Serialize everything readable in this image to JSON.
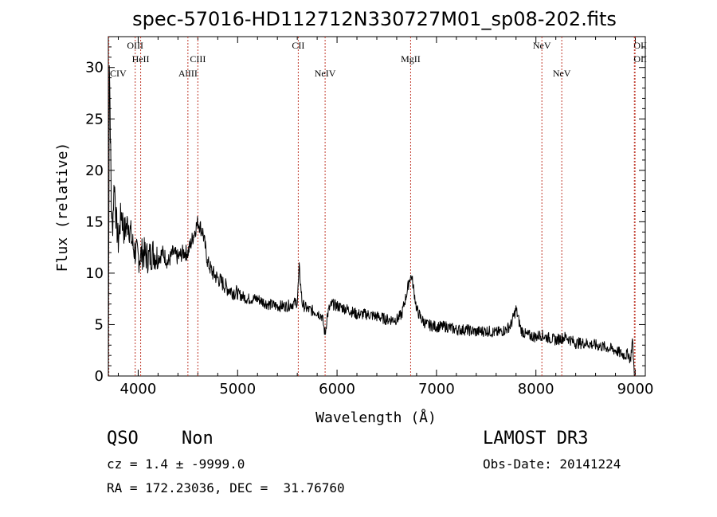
{
  "chart_data": {
    "type": "line",
    "title": "spec-57016-HD112712N330727M01_sp08-202.fits",
    "xlabel": "Wavelength (Å)",
    "ylabel": "Flux (relative)",
    "xlim": [
      3700,
      9100
    ],
    "ylim": [
      0,
      33
    ],
    "xticks": [
      4000,
      5000,
      6000,
      7000,
      8000,
      9000
    ],
    "yticks": [
      0,
      5,
      10,
      15,
      20,
      25,
      30
    ],
    "grid": false,
    "series": [
      {
        "x": [
          3700,
          3710,
          3720,
          3730,
          3740,
          3760,
          3780,
          3800,
          3830,
          3860,
          3900,
          3950,
          4000,
          4050,
          4100,
          4150,
          4200,
          4250,
          4300,
          4350,
          4400,
          4450,
          4500,
          4550,
          4600,
          4650,
          4700,
          4750,
          4800,
          4900,
          5000,
          5100,
          5200,
          5300,
          5400,
          5500,
          5600,
          5620,
          5650,
          5700,
          5800,
          5850,
          5880,
          5900,
          5920,
          5950,
          6000,
          6100,
          6200,
          6300,
          6400,
          6500,
          6600,
          6650,
          6700,
          6730,
          6750,
          6770,
          6800,
          6850,
          6900,
          7000,
          7100,
          7200,
          7300,
          7400,
          7500,
          7600,
          7700,
          7750,
          7800,
          7850,
          7900,
          8000,
          8050,
          8100,
          8200,
          8300,
          8400,
          8500,
          8600,
          8700,
          8800,
          8850,
          8900,
          8930,
          8950,
          8970,
          8990
        ],
        "y": [
          0,
          31,
          24,
          17,
          14,
          19,
          15,
          13,
          16,
          14,
          15,
          12.5,
          11.5,
          12,
          11.5,
          12,
          11.5,
          12,
          11,
          12,
          11.5,
          12,
          12,
          13.5,
          15,
          14,
          11,
          10,
          9.5,
          8.5,
          8,
          7.5,
          7.5,
          7,
          6.8,
          6.8,
          7.2,
          10.5,
          7,
          6.5,
          6.2,
          5.8,
          4,
          5.8,
          6.5,
          7,
          6.8,
          6.5,
          6,
          6,
          5.8,
          5.5,
          5.5,
          6,
          8,
          9.5,
          9.7,
          8.5,
          6.5,
          5.5,
          5,
          4.8,
          4.8,
          4.5,
          4.5,
          4.3,
          4.4,
          4.2,
          4.5,
          5,
          6.5,
          4.5,
          4,
          3.8,
          4,
          3.8,
          3.5,
          3.8,
          3.2,
          3.2,
          3,
          2.8,
          2.5,
          2.2,
          2,
          2.2,
          1.5,
          3.5,
          0
        ]
      }
    ],
    "lines": [
      {
        "name": "CIV",
        "x": 3705,
        "row": 3
      },
      {
        "name": "OIII",
        "x": 3970,
        "row": 1
      },
      {
        "name": "HeII",
        "x": 4025,
        "row": 2
      },
      {
        "name": "AlIII",
        "x": 4500,
        "row": 3
      },
      {
        "name": "CIII",
        "x": 4600,
        "row": 2
      },
      {
        "name": "CII",
        "x": 5610,
        "row": 1
      },
      {
        "name": "NeIV",
        "x": 5880,
        "row": 3
      },
      {
        "name": "MgII",
        "x": 6740,
        "row": 2
      },
      {
        "name": "NeV",
        "x": 8060,
        "row": 1
      },
      {
        "name": "NeV",
        "x": 8260,
        "row": 3
      },
      {
        "name": "OII",
        "x": 8990,
        "row": 1
      },
      {
        "name": "OII",
        "x": 8997,
        "row": 2
      }
    ]
  },
  "info": {
    "class": "QSO",
    "subclass": "Non",
    "survey": "LAMOST DR3",
    "cz": "cz = 1.4 ± -9999.0",
    "obs_date": "Obs-Date: 20141224",
    "radec": "RA = 172.23036, DEC =  31.76760"
  },
  "colors": {
    "spectrum": "#000000",
    "line_markers": "#c0392b"
  }
}
